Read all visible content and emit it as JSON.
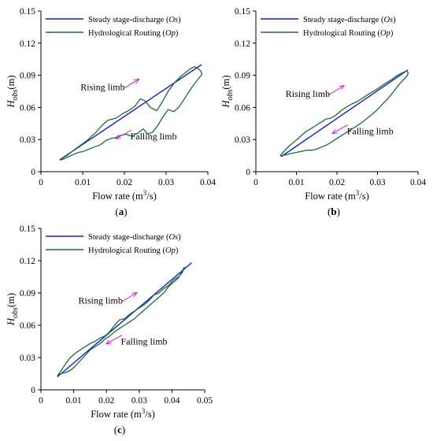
{
  "chart_data": [
    {
      "panel": "(a)",
      "type": "line",
      "xlabel": "Flow rate (m³/s)",
      "ylabel": "Hobs(m)",
      "xlim": [
        0,
        0.04
      ],
      "ylim": [
        0,
        0.15
      ],
      "xticks": [
        "0",
        "0.01",
        "0.02",
        "0.03",
        "0.04"
      ],
      "yticks": [
        "0",
        "0.03",
        "0.06",
        "0.09",
        "0.12",
        "0.15"
      ],
      "legend_position": "top-left",
      "annotations": [
        {
          "text": "Rising limb",
          "at": [
            0.0148,
            0.076
          ],
          "arrow_dir": "up-right"
        },
        {
          "text": "Falling limb",
          "at": [
            0.027,
            0.03
          ],
          "arrow_dir": "down-left"
        }
      ],
      "series": [
        {
          "name": "Steady stage-discharge (Os)",
          "color": "#1f1fbf",
          "x": [
            0.0045,
            0.0385
          ],
          "y": [
            0.011,
            0.1
          ]
        },
        {
          "name": "Hydrological Routing (Op)",
          "color": "#1a6b3a",
          "x": [
            0.0045,
            0.0062,
            0.0085,
            0.011,
            0.013,
            0.0146,
            0.016,
            0.018,
            0.0195,
            0.021,
            0.0225,
            0.0238,
            0.025,
            0.0262,
            0.0278,
            0.0292,
            0.0305,
            0.032,
            0.0335,
            0.0348,
            0.0358,
            0.0368,
            0.0378,
            0.0383,
            0.0386,
            0.0374,
            0.0362,
            0.0352,
            0.0342,
            0.033,
            0.0318,
            0.0305,
            0.0292,
            0.028,
            0.0268,
            0.0256,
            0.0245,
            0.0232,
            0.0218,
            0.0205,
            0.0192,
            0.018,
            0.0168,
            0.0155,
            0.0142,
            0.0128,
            0.0115,
            0.0102,
            0.009,
            0.0078,
            0.0066,
            0.0055,
            0.0048,
            0.0045
          ],
          "y": [
            0.011,
            0.015,
            0.022,
            0.029,
            0.036,
            0.043,
            0.048,
            0.05,
            0.054,
            0.057,
            0.061,
            0.068,
            0.066,
            0.06,
            0.057,
            0.066,
            0.075,
            0.083,
            0.089,
            0.093,
            0.096,
            0.098,
            0.096,
            0.094,
            0.091,
            0.085,
            0.079,
            0.073,
            0.067,
            0.06,
            0.056,
            0.058,
            0.051,
            0.043,
            0.037,
            0.035,
            0.04,
            0.036,
            0.033,
            0.035,
            0.034,
            0.032,
            0.031,
            0.029,
            0.025,
            0.023,
            0.021,
            0.019,
            0.018,
            0.016,
            0.014,
            0.012,
            0.011,
            0.011
          ]
        }
      ]
    },
    {
      "panel": "(b)",
      "type": "line",
      "xlabel": "Flow rate (m³/s)",
      "ylabel": "Hobs(m)",
      "xlim": [
        0,
        0.04
      ],
      "ylim": [
        0,
        0.15
      ],
      "xticks": [
        "0",
        "0.01",
        "0.02",
        "0.03",
        "0.04"
      ],
      "yticks": [
        "0",
        "0.03",
        "0.06",
        "0.09",
        "0.12",
        "0.15"
      ],
      "legend_position": "top-left",
      "annotations": [
        {
          "text": "Rising limb",
          "at": [
            0.0128,
            0.07
          ],
          "arrow_dir": "up-right"
        },
        {
          "text": "Falling limb",
          "at": [
            0.0282,
            0.035
          ],
          "arrow_dir": "down-left"
        }
      ],
      "series": [
        {
          "name": "Steady stage-discharge (Os)",
          "color": "#1f1fbf",
          "x": [
            0.0062,
            0.0375
          ],
          "y": [
            0.014,
            0.095
          ]
        },
        {
          "name": "Hydrological Routing (Op)",
          "color": "#1a6b3a",
          "x": [
            0.006,
            0.0072,
            0.0085,
            0.0098,
            0.011,
            0.0122,
            0.0135,
            0.0148,
            0.016,
            0.0172,
            0.0185,
            0.0198,
            0.021,
            0.0222,
            0.0235,
            0.0248,
            0.026,
            0.0272,
            0.0285,
            0.0298,
            0.031,
            0.0322,
            0.0335,
            0.0345,
            0.0355,
            0.0365,
            0.0372,
            0.0376,
            0.0372,
            0.0362,
            0.035,
            0.0338,
            0.0325,
            0.0312,
            0.03,
            0.0288,
            0.0275,
            0.0262,
            0.025,
            0.0238,
            0.0225,
            0.0212,
            0.02,
            0.0188,
            0.0175,
            0.0162,
            0.015,
            0.0138,
            0.0125,
            0.0112,
            0.01,
            0.0088,
            0.0076,
            0.0066,
            0.006
          ],
          "y": [
            0.015,
            0.02,
            0.025,
            0.029,
            0.033,
            0.037,
            0.04,
            0.043,
            0.046,
            0.049,
            0.05,
            0.053,
            0.057,
            0.06,
            0.063,
            0.065,
            0.068,
            0.071,
            0.074,
            0.077,
            0.08,
            0.083,
            0.086,
            0.089,
            0.091,
            0.093,
            0.094,
            0.092,
            0.089,
            0.085,
            0.08,
            0.074,
            0.068,
            0.063,
            0.058,
            0.054,
            0.05,
            0.046,
            0.043,
            0.04,
            0.037,
            0.034,
            0.031,
            0.028,
            0.025,
            0.023,
            0.021,
            0.02,
            0.02,
            0.019,
            0.018,
            0.017,
            0.016,
            0.015,
            0.015
          ]
        }
      ]
    },
    {
      "panel": "(c)",
      "type": "line",
      "xlabel": "Flow rate (m³/s)",
      "ylabel": "Hobs(m)",
      "xlim": [
        0,
        0.05
      ],
      "ylim": [
        0,
        0.15
      ],
      "xticks": [
        "0",
        "0.01",
        "0.02",
        "0.03",
        "0.04",
        "0.05"
      ],
      "yticks": [
        "0",
        "0.03",
        "0.06",
        "0.09",
        "0.12",
        "0.15"
      ],
      "legend_position": "top-left",
      "annotations": [
        {
          "text": "Rising limb",
          "at": [
            0.0182,
            0.08
          ],
          "arrow_dir": "up-right"
        },
        {
          "text": "Falling limb",
          "at": [
            0.0315,
            0.042
          ],
          "arrow_dir": "down-left"
        }
      ],
      "series": [
        {
          "name": "Steady stage-discharge (Os)",
          "color": "#1f1fbf",
          "x": [
            0.005,
            0.046
          ],
          "y": [
            0.012,
            0.118
          ]
        },
        {
          "name": "Hydrological Routing (Op)",
          "color": "#1a6b3a",
          "x": [
            0.005,
            0.0062,
            0.0075,
            0.009,
            0.0105,
            0.012,
            0.0135,
            0.015,
            0.0165,
            0.018,
            0.0195,
            0.021,
            0.0225,
            0.024,
            0.0255,
            0.027,
            0.0285,
            0.03,
            0.0315,
            0.033,
            0.0345,
            0.036,
            0.0375,
            0.039,
            0.0405,
            0.042,
            0.0432,
            0.0438,
            0.0432,
            0.042,
            0.0405,
            0.039,
            0.0375,
            0.036,
            0.0345,
            0.033,
            0.0315,
            0.03,
            0.0285,
            0.027,
            0.0255,
            0.024,
            0.0225,
            0.021,
            0.0195,
            0.018,
            0.0165,
            0.015,
            0.0135,
            0.012,
            0.0105,
            0.009,
            0.0075,
            0.006,
            0.005
          ],
          "y": [
            0.013,
            0.018,
            0.024,
            0.03,
            0.034,
            0.037,
            0.04,
            0.043,
            0.045,
            0.048,
            0.05,
            0.054,
            0.06,
            0.065,
            0.066,
            0.07,
            0.073,
            0.076,
            0.079,
            0.083,
            0.088,
            0.09,
            0.094,
            0.097,
            0.102,
            0.105,
            0.109,
            0.114,
            0.111,
            0.104,
            0.1,
            0.096,
            0.09,
            0.086,
            0.082,
            0.078,
            0.074,
            0.07,
            0.066,
            0.063,
            0.06,
            0.057,
            0.054,
            0.05,
            0.047,
            0.043,
            0.04,
            0.037,
            0.032,
            0.027,
            0.022,
            0.018,
            0.016,
            0.015,
            0.013
          ]
        }
      ]
    }
  ]
}
